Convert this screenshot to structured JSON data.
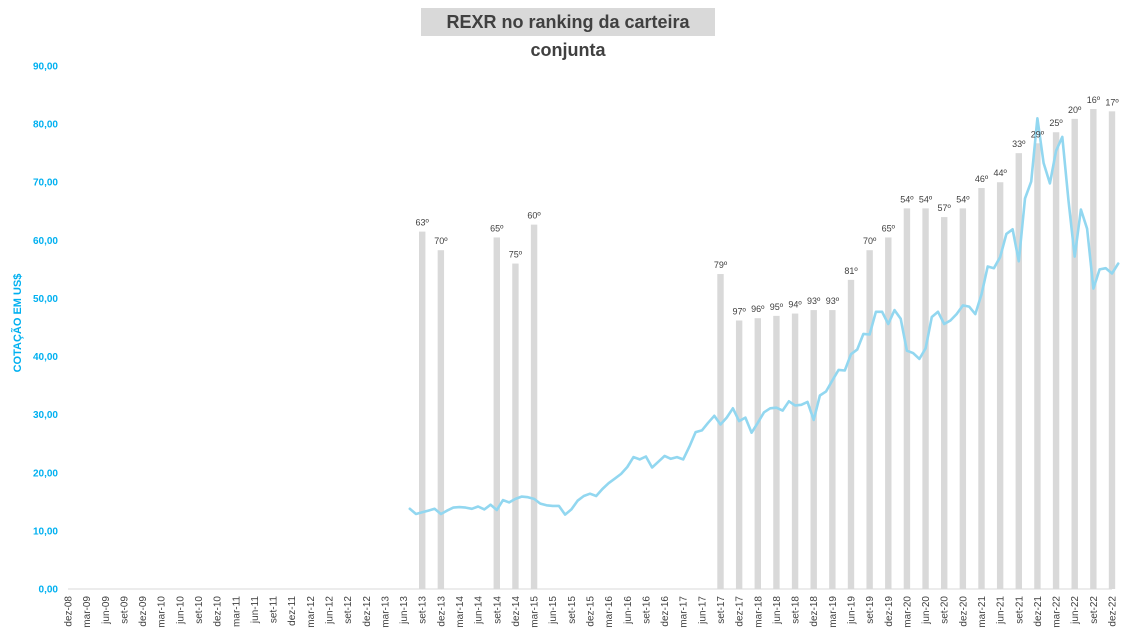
{
  "chart_data": {
    "type": "bar+line",
    "title": "REXR no ranking da carteira conjunta",
    "ylabel": "COTAÇÃO EM US$",
    "ylim": [
      0,
      90
    ],
    "yticks": [
      "0,00",
      "10,00",
      "20,00",
      "30,00",
      "40,00",
      "50,00",
      "60,00",
      "70,00",
      "80,00",
      "90,00"
    ],
    "yticks_values": [
      0,
      10,
      20,
      30,
      40,
      50,
      60,
      70,
      80,
      90
    ],
    "x_start": "dez-08",
    "x_end": "dez-22",
    "xtick_labels": [
      "dez-08",
      "mar-09",
      "jun-09",
      "set-09",
      "dez-09",
      "mar-10",
      "jun-10",
      "set-10",
      "dez-10",
      "mar-11",
      "jun-11",
      "set-11",
      "dez-11",
      "mar-12",
      "jun-12",
      "set-12",
      "dez-12",
      "mar-13",
      "jun-13",
      "set-13",
      "dez-13",
      "mar-14",
      "jun-14",
      "set-14",
      "dez-14",
      "mar-15",
      "jun-15",
      "set-15",
      "dez-15",
      "mar-16",
      "jun-16",
      "set-16",
      "dez-16",
      "mar-17",
      "jun-17",
      "set-17",
      "dez-17",
      "mar-18",
      "jun-18",
      "set-18",
      "dez-18",
      "mar-19",
      "jun-19",
      "set-19",
      "dez-19",
      "mar-20",
      "jun-20",
      "set-20",
      "dez-20",
      "mar-21",
      "jun-21",
      "set-21",
      "dez-21",
      "mar-22",
      "jun-22",
      "set-22",
      "dez-22"
    ],
    "bars": [
      {
        "date": "set-13",
        "value": 61.5,
        "label": "63º"
      },
      {
        "date": "dez-13",
        "value": 58.3,
        "label": "70º"
      },
      {
        "date": "set-14",
        "value": 60.5,
        "label": "65º"
      },
      {
        "date": "dez-14",
        "value": 56.0,
        "label": "75º"
      },
      {
        "date": "mar-15",
        "value": 62.7,
        "label": "60º"
      },
      {
        "date": "set-17",
        "value": 54.2,
        "label": "79º"
      },
      {
        "date": "dez-17",
        "value": 46.2,
        "label": "97º"
      },
      {
        "date": "mar-18",
        "value": 46.6,
        "label": "96º"
      },
      {
        "date": "jun-18",
        "value": 47.0,
        "label": "95º"
      },
      {
        "date": "set-18",
        "value": 47.4,
        "label": "94º"
      },
      {
        "date": "dez-18",
        "value": 48.0,
        "label": "93º"
      },
      {
        "date": "mar-19",
        "value": 48.0,
        "label": "93º"
      },
      {
        "date": "jun-19",
        "value": 53.2,
        "label": "81º"
      },
      {
        "date": "set-19",
        "value": 58.3,
        "label": "70º"
      },
      {
        "date": "dez-19",
        "value": 60.5,
        "label": "65º"
      },
      {
        "date": "mar-20",
        "value": 65.5,
        "label": "54º"
      },
      {
        "date": "jun-20",
        "value": 65.5,
        "label": "54º"
      },
      {
        "date": "set-20",
        "value": 64.0,
        "label": "57º"
      },
      {
        "date": "dez-20",
        "value": 65.5,
        "label": "54º"
      },
      {
        "date": "mar-21",
        "value": 69.0,
        "label": "46º"
      },
      {
        "date": "jun-21",
        "value": 70.0,
        "label": "44º"
      },
      {
        "date": "set-21",
        "value": 75.0,
        "label": "33º"
      },
      {
        "date": "dez-21",
        "value": 76.7,
        "label": "29º"
      },
      {
        "date": "mar-22",
        "value": 78.6,
        "label": "25º"
      },
      {
        "date": "jun-22",
        "value": 80.9,
        "label": "20º"
      },
      {
        "date": "set-22",
        "value": 82.6,
        "label": "16º"
      },
      {
        "date": "dez-22",
        "value": 82.2,
        "label": "17º"
      }
    ],
    "line_series": {
      "start": "jul-13",
      "values": [
        13.8,
        12.9,
        13.2,
        13.5,
        13.8,
        12.9,
        13.5,
        14.0,
        14.1,
        14.0,
        13.8,
        14.2,
        13.7,
        14.5,
        13.6,
        15.3,
        14.9,
        15.5,
        15.9,
        15.8,
        15.5,
        14.7,
        14.4,
        14.3,
        14.3,
        12.8,
        13.7,
        15.2,
        16.0,
        16.4,
        16.0,
        17.2,
        18.2,
        19.0,
        19.8,
        21.0,
        22.7,
        22.3,
        22.8,
        20.9,
        21.9,
        22.9,
        22.4,
        22.7,
        22.3,
        24.5,
        27.0,
        27.3,
        28.6,
        29.8,
        28.3,
        29.5,
        31.1,
        28.9,
        29.5,
        26.9,
        28.6,
        30.4,
        31.1,
        31.2,
        30.7,
        32.3,
        31.6,
        31.7,
        32.2,
        29.1,
        33.3,
        34.0,
        35.9,
        37.7,
        37.6,
        40.4,
        41.2,
        43.9,
        43.8,
        47.7,
        47.7,
        45.6,
        48.0,
        46.5,
        41.0,
        40.6,
        39.6,
        41.4,
        46.8,
        47.7,
        45.6,
        46.2,
        47.3,
        48.8,
        48.6,
        47.3,
        50.7,
        55.5,
        55.2,
        57.1,
        61.1,
        61.9,
        56.4,
        67.2,
        70.1,
        81.0,
        73.3,
        69.8,
        75.4,
        77.8,
        66.8,
        57.2,
        65.3,
        62.0,
        51.7,
        55.0,
        55.2,
        54.3,
        56.0
      ]
    },
    "colors": {
      "bar": "#d9d9d9",
      "line": "#92d7f0",
      "ytick": "#00b0f0",
      "grid": "#d9d9d9"
    }
  }
}
